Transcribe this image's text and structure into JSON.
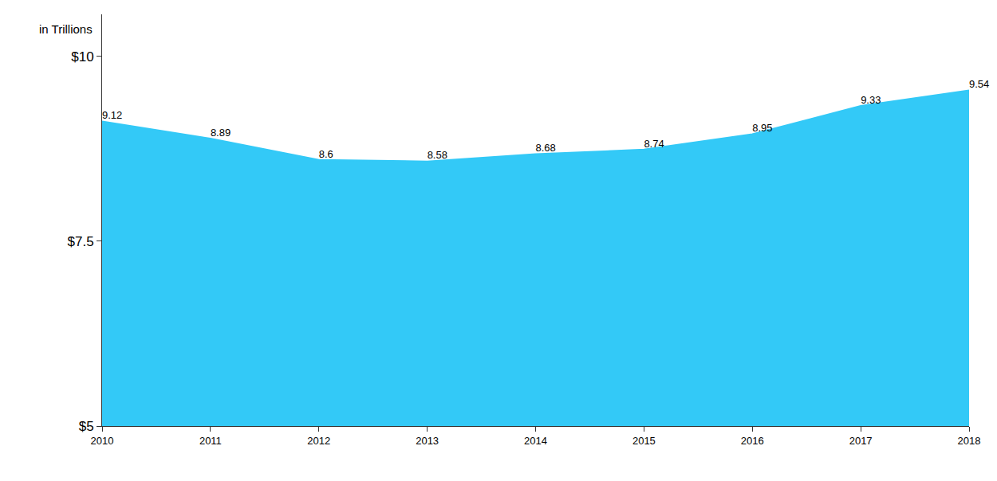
{
  "chart_data": {
    "type": "area",
    "ylabel": "in Trillions",
    "categories": [
      "2010",
      "2011",
      "2012",
      "2013",
      "2014",
      "2015",
      "2016",
      "2017",
      "2018"
    ],
    "values": [
      9.12,
      8.89,
      8.6,
      8.58,
      8.68,
      8.74,
      8.95,
      9.33,
      9.54
    ],
    "color": "#33c9f7",
    "ylim": [
      5,
      10.57
    ],
    "yticks": [
      {
        "value": 5,
        "label": "$5"
      },
      {
        "value": 7.5,
        "label": "$7.5"
      },
      {
        "value": 10,
        "label": "$10"
      }
    ],
    "grid": false,
    "data_labels": true
  }
}
